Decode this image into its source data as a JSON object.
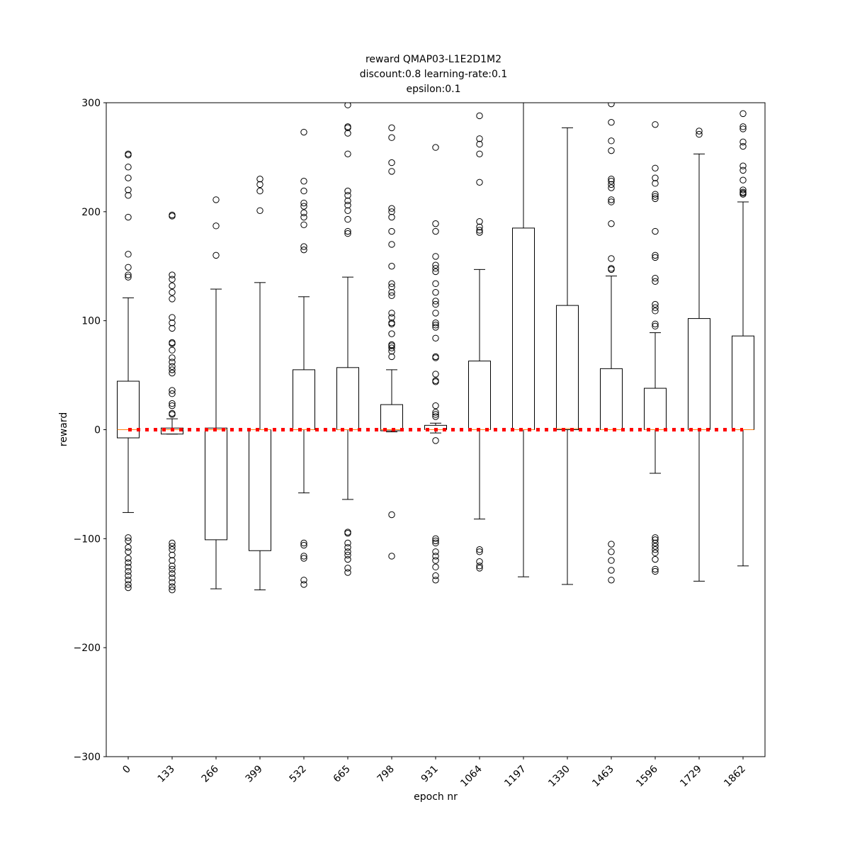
{
  "chart_data": {
    "type": "box",
    "title": [
      "reward QMAP03-L1E2D1M2",
      "discount:0.8 learning-rate:0.1",
      "epsilon:0.1"
    ],
    "x_label": "epoch nr",
    "y_label": "reward",
    "categories": [
      "0",
      "133",
      "266",
      "399",
      "532",
      "665",
      "798",
      "931",
      "1064",
      "1197",
      "1330",
      "1463",
      "1596",
      "1729",
      "1862"
    ],
    "ylim": [
      -300,
      300
    ],
    "yticks": [
      {
        "value": -300,
        "label": "−300"
      },
      {
        "value": -200,
        "label": "−200"
      },
      {
        "value": -100,
        "label": "−100"
      },
      0,
      100,
      200,
      300
    ],
    "box_color": "#000000",
    "median_color": "#ff7f0e",
    "line_values": [
      0,
      0,
      0,
      0,
      0,
      0,
      0,
      0,
      0,
      0,
      0,
      0,
      0,
      0,
      0
    ],
    "line_color": "#ff0000",
    "boxes": [
      {
        "whislo": -76,
        "q1": -7.5,
        "med": 0,
        "q3": 44.5,
        "whishi": 121,
        "fliers": [
          253,
          252,
          241,
          231,
          220,
          215,
          195,
          161,
          149,
          142,
          140,
          -99,
          -102,
          -108,
          -112,
          -118,
          -122,
          -126,
          -130,
          -134,
          -138,
          -142,
          -145
        ]
      },
      {
        "whislo": -4,
        "q1": -4,
        "med": 0,
        "q3": 1.5,
        "whishi": 10,
        "fliers": [
          197,
          196,
          142,
          138,
          132,
          126,
          120,
          103,
          98,
          93,
          80,
          79,
          73,
          66,
          62,
          58,
          55,
          52,
          36,
          33,
          24,
          22,
          15,
          14,
          -104,
          -107,
          -110,
          -115,
          -120,
          -125,
          -128,
          -132,
          -136,
          -140,
          -144,
          -147
        ]
      },
      {
        "whislo": -146,
        "q1": -101,
        "med": 0,
        "q3": 1.5,
        "whishi": 129,
        "fliers": [
          211,
          187,
          160
        ]
      },
      {
        "whislo": -147,
        "q1": -111,
        "med": 0,
        "q3": 0,
        "whishi": 135,
        "fliers": [
          230,
          225,
          219,
          201
        ]
      },
      {
        "whislo": -58,
        "q1": 0,
        "med": 0,
        "q3": 55,
        "whishi": 122,
        "fliers": [
          273,
          228,
          219,
          208,
          205,
          199,
          195,
          188,
          168,
          165,
          -104,
          -106,
          -116,
          -118,
          -138,
          -142
        ]
      },
      {
        "whislo": -64,
        "q1": 0,
        "med": 0,
        "q3": 57,
        "whishi": 140,
        "fliers": [
          298,
          278,
          277,
          272,
          253,
          219,
          215,
          210,
          206,
          201,
          193,
          182,
          180,
          -94,
          -95,
          -104,
          -108,
          -112,
          -115,
          -119,
          -127,
          -131
        ]
      },
      {
        "whislo": -2,
        "q1": -1,
        "med": 0,
        "q3": 23,
        "whishi": 55,
        "fliers": [
          277,
          268,
          245,
          237,
          203,
          200,
          195,
          182,
          170,
          150,
          134,
          131,
          126,
          123,
          107,
          103,
          98,
          97,
          88,
          78,
          77,
          75,
          72,
          67,
          -78,
          -116
        ]
      },
      {
        "whislo": -3,
        "q1": 0,
        "med": 0,
        "q3": 4,
        "whishi": 6,
        "fliers": [
          259,
          189,
          182,
          159,
          151,
          148,
          145,
          134,
          126,
          118,
          115,
          107,
          98,
          96,
          94,
          84,
          67,
          66,
          51,
          45,
          44,
          22,
          16,
          14,
          12,
          -10,
          -100,
          -102,
          -104,
          -112,
          -116,
          -120,
          -126,
          -134,
          -138
        ]
      },
      {
        "whislo": -82,
        "q1": 0,
        "med": 0,
        "q3": 63,
        "whishi": 147,
        "fliers": [
          288,
          267,
          262,
          253,
          227,
          191,
          186,
          183,
          181,
          -110,
          -112,
          -121,
          -125,
          -127
        ]
      },
      {
        "whislo": -135,
        "q1": 0,
        "med": 0,
        "q3": 185,
        "whishi": 320,
        "fliers": []
      },
      {
        "whislo": -142,
        "q1": 0,
        "med": 1,
        "q3": 114,
        "whishi": 277,
        "fliers": []
      },
      {
        "whislo": 0,
        "q1": 0,
        "med": 0,
        "q3": 56,
        "whishi": 141,
        "fliers": [
          299,
          282,
          265,
          256,
          230,
          228,
          225,
          222,
          211,
          209,
          189,
          157,
          148,
          147,
          -105,
          -112,
          -120,
          -129,
          -138
        ]
      },
      {
        "whislo": -40,
        "q1": 0,
        "med": 0,
        "q3": 38,
        "whishi": 89,
        "fliers": [
          280,
          240,
          231,
          226,
          216,
          214,
          212,
          182,
          160,
          158,
          139,
          136,
          115,
          112,
          109,
          97,
          95,
          -99,
          -101,
          -104,
          -107,
          -110,
          -113,
          -119,
          -128,
          -130
        ]
      },
      {
        "whislo": -139,
        "q1": 0,
        "med": 0,
        "q3": 102,
        "whishi": 253,
        "fliers": [
          274,
          271
        ]
      },
      {
        "whislo": -125,
        "q1": 0,
        "med": 0,
        "q3": 86,
        "whishi": 209,
        "fliers": [
          290,
          278,
          276,
          264,
          260,
          242,
          238,
          229,
          220,
          218,
          217,
          216
        ]
      }
    ]
  }
}
